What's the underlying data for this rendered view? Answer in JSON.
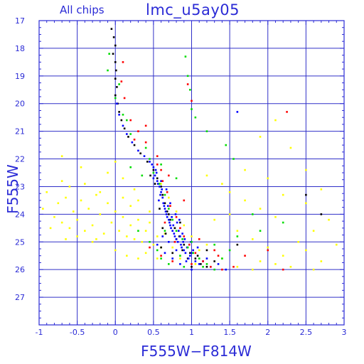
{
  "chart_data": {
    "type": "scatter",
    "title": "lmc_u5ay05",
    "subtitle": "All chips",
    "xlabel": "F555W−F814W",
    "ylabel": "F555W",
    "xlim": [
      -1,
      3
    ],
    "ylim": [
      28,
      17
    ],
    "y_inverted": true,
    "grid": true,
    "x_ticks": [
      -1,
      -0.5,
      0,
      0.5,
      1,
      1.5,
      2,
      2.5,
      3
    ],
    "y_ticks": [
      17,
      18,
      19,
      20,
      21,
      22,
      23,
      24,
      25,
      26,
      27
    ],
    "series": [
      {
        "color": "#ffff00",
        "points": [
          [
            -0.9,
            23.2
          ],
          [
            -0.8,
            24.1
          ],
          [
            -0.75,
            23.6
          ],
          [
            -0.7,
            24.3
          ],
          [
            -0.65,
            23.4
          ],
          [
            -0.6,
            24.5
          ],
          [
            -0.55,
            23.9
          ],
          [
            -0.5,
            24.2
          ],
          [
            -0.45,
            23.5
          ],
          [
            -0.4,
            24.6
          ],
          [
            -0.35,
            23.8
          ],
          [
            -0.3,
            24.4
          ],
          [
            -0.25,
            23.3
          ],
          [
            -0.2,
            24.0
          ],
          [
            -0.15,
            24.7
          ],
          [
            -0.1,
            23.6
          ],
          [
            -0.05,
            24.3
          ],
          [
            0.0,
            23.9
          ],
          [
            0.05,
            24.6
          ],
          [
            0.1,
            24.1
          ],
          [
            0.15,
            24.8
          ],
          [
            0.2,
            24.4
          ],
          [
            0.25,
            24.9
          ],
          [
            0.3,
            24.2
          ],
          [
            0.35,
            25.0
          ],
          [
            0.4,
            24.6
          ],
          [
            0.45,
            24.3
          ],
          [
            0.5,
            25.1
          ],
          [
            0.55,
            24.8
          ],
          [
            0.6,
            25.2
          ],
          [
            -0.7,
            22.8
          ],
          [
            -0.6,
            23.0
          ],
          [
            -0.4,
            22.9
          ],
          [
            -0.2,
            23.2
          ],
          [
            0.1,
            23.4
          ],
          [
            0.2,
            23.7
          ],
          [
            0.3,
            23.5
          ],
          [
            0.45,
            23.9
          ],
          [
            -0.85,
            24.5
          ],
          [
            -0.5,
            24.8
          ],
          [
            -0.3,
            25.0
          ],
          [
            0.0,
            25.3
          ],
          [
            0.15,
            25.5
          ],
          [
            0.3,
            25.6
          ],
          [
            -0.95,
            23.8
          ],
          [
            -0.65,
            24.9
          ],
          [
            0.4,
            25.4
          ],
          [
            0.55,
            25.6
          ],
          [
            -0.25,
            24.9
          ],
          [
            0.25,
            23.1
          ],
          [
            1.5,
            23.2
          ],
          [
            1.7,
            23.5
          ],
          [
            1.9,
            23.8
          ],
          [
            2.1,
            24.1
          ],
          [
            1.6,
            24.6
          ],
          [
            1.8,
            24.9
          ],
          [
            2.0,
            25.2
          ],
          [
            2.2,
            25.5
          ],
          [
            2.4,
            25.0
          ],
          [
            2.6,
            24.6
          ],
          [
            1.4,
            25.6
          ],
          [
            1.6,
            25.9
          ],
          [
            1.9,
            25.7
          ],
          [
            2.3,
            25.9
          ],
          [
            2.5,
            25.3
          ],
          [
            2.7,
            25.7
          ],
          [
            1.2,
            22.6
          ],
          [
            1.4,
            22.9
          ],
          [
            1.7,
            22.4
          ],
          [
            2.0,
            22.7
          ],
          [
            2.2,
            23.3
          ],
          [
            2.5,
            23.6
          ],
          [
            1.3,
            24.2
          ],
          [
            1.5,
            24.0
          ],
          [
            2.8,
            24.2
          ],
          [
            2.9,
            25.1
          ],
          [
            1.2,
            25.1
          ],
          [
            1.8,
            26.0
          ],
          [
            2.1,
            25.8
          ],
          [
            2.6,
            26.0
          ],
          [
            0.6,
            22.9
          ],
          [
            0.7,
            23.4
          ],
          [
            0.8,
            23.9
          ],
          [
            0.9,
            24.4
          ],
          [
            1.0,
            24.8
          ],
          [
            1.1,
            25.3
          ],
          [
            0.65,
            24.7
          ],
          [
            0.75,
            25.2
          ],
          [
            0.85,
            25.6
          ],
          [
            1.05,
            25.8
          ],
          [
            -0.45,
            22.3
          ],
          [
            -0.1,
            22.5
          ],
          [
            0.1,
            22.7
          ],
          [
            2.3,
            21.6
          ],
          [
            2.5,
            22.4
          ],
          [
            1.9,
            21.2
          ],
          [
            2.1,
            20.6
          ],
          [
            -0.7,
            21.9
          ],
          [
            0.0,
            22.1
          ],
          [
            2.7,
            23.1
          ]
        ]
      },
      {
        "color": "#000000",
        "points": [
          [
            -0.05,
            17.3
          ],
          [
            -0.02,
            17.6
          ],
          [
            0.0,
            17.9
          ],
          [
            -0.03,
            18.2
          ],
          [
            0.0,
            18.5
          ],
          [
            0.01,
            18.8
          ],
          [
            0.0,
            19.1
          ],
          [
            0.02,
            19.4
          ],
          [
            0.0,
            19.7
          ],
          [
            0.03,
            20.0
          ],
          [
            0.05,
            20.3
          ],
          [
            0.08,
            20.6
          ],
          [
            0.12,
            20.9
          ],
          [
            0.17,
            21.2
          ],
          [
            0.25,
            21.5
          ],
          [
            0.33,
            21.8
          ],
          [
            0.42,
            22.1
          ],
          [
            0.5,
            22.4
          ],
          [
            0.55,
            22.7
          ],
          [
            0.6,
            23.0
          ],
          [
            0.62,
            23.3
          ],
          [
            0.65,
            23.6
          ],
          [
            0.68,
            23.9
          ],
          [
            0.72,
            24.2
          ],
          [
            0.78,
            24.5
          ],
          [
            0.84,
            24.8
          ],
          [
            0.9,
            25.1
          ],
          [
            0.98,
            25.4
          ],
          [
            1.05,
            25.6
          ],
          [
            1.12,
            25.8
          ],
          [
            0.7,
            24.0
          ],
          [
            0.8,
            24.9
          ],
          [
            0.95,
            25.6
          ],
          [
            1.2,
            25.9
          ],
          [
            1.3,
            25.7
          ],
          [
            0.6,
            25.2
          ],
          [
            0.75,
            25.4
          ],
          [
            1.0,
            25.9
          ],
          [
            0.85,
            24.3
          ],
          [
            0.62,
            24.5
          ],
          [
            2.5,
            23.3
          ],
          [
            2.7,
            24.0
          ],
          [
            1.6,
            25.1
          ],
          [
            1.2,
            25.3
          ],
          [
            0.58,
            23.8
          ],
          [
            0.66,
            24.7
          ],
          [
            0.88,
            25.3
          ],
          [
            1.08,
            25.5
          ],
          [
            0.52,
            22.9
          ],
          [
            0.46,
            22.6
          ]
        ]
      },
      {
        "color": "#0000ff",
        "points": [
          [
            0.45,
            22.1
          ],
          [
            0.5,
            22.3
          ],
          [
            0.52,
            22.6
          ],
          [
            0.55,
            22.8
          ],
          [
            0.58,
            23.0
          ],
          [
            0.6,
            23.2
          ],
          [
            0.62,
            23.4
          ],
          [
            0.63,
            23.6
          ],
          [
            0.65,
            23.8
          ],
          [
            0.67,
            24.0
          ],
          [
            0.7,
            24.2
          ],
          [
            0.72,
            24.4
          ],
          [
            0.75,
            24.6
          ],
          [
            0.78,
            24.8
          ],
          [
            0.82,
            25.0
          ],
          [
            0.87,
            25.2
          ],
          [
            0.92,
            25.4
          ],
          [
            0.98,
            25.5
          ],
          [
            1.05,
            25.7
          ],
          [
            1.1,
            25.8
          ],
          [
            0.56,
            22.9
          ],
          [
            0.59,
            23.3
          ],
          [
            0.64,
            23.7
          ],
          [
            0.68,
            24.1
          ],
          [
            0.73,
            24.5
          ],
          [
            0.77,
            24.7
          ],
          [
            0.8,
            24.9
          ],
          [
            0.86,
            25.1
          ],
          [
            0.9,
            25.3
          ],
          [
            0.96,
            25.6
          ],
          [
            0.54,
            22.5
          ],
          [
            0.61,
            23.1
          ],
          [
            0.66,
            23.9
          ],
          [
            0.71,
            24.3
          ],
          [
            0.76,
            24.4
          ],
          [
            0.83,
            24.6
          ],
          [
            0.89,
            25.0
          ],
          [
            0.94,
            25.2
          ],
          [
            1.0,
            25.4
          ],
          [
            1.15,
            25.7
          ],
          [
            0.5,
            22.7
          ],
          [
            0.57,
            23.5
          ],
          [
            0.69,
            23.7
          ],
          [
            0.74,
            24.1
          ],
          [
            0.81,
            24.3
          ],
          [
            0.85,
            24.8
          ],
          [
            0.91,
            24.9
          ],
          [
            0.97,
            25.1
          ],
          [
            1.02,
            25.3
          ],
          [
            1.2,
            25.6
          ],
          [
            0.48,
            22.2
          ],
          [
            0.53,
            22.4
          ],
          [
            0.6,
            22.8
          ],
          [
            0.67,
            23.1
          ],
          [
            0.72,
            23.6
          ],
          [
            0.79,
            24.0
          ],
          [
            0.84,
            24.2
          ],
          [
            0.88,
            24.7
          ],
          [
            0.99,
            25.0
          ],
          [
            1.08,
            25.2
          ],
          [
            0.02,
            20.0
          ],
          [
            0.05,
            20.4
          ],
          [
            0.1,
            20.8
          ],
          [
            0.15,
            21.1
          ],
          [
            0.22,
            21.4
          ],
          [
            0.3,
            21.7
          ],
          [
            0.38,
            21.9
          ],
          [
            1.6,
            20.3
          ],
          [
            0.55,
            25.1
          ],
          [
            0.65,
            25.4
          ],
          [
            0.62,
            24.8
          ],
          [
            0.7,
            25.0
          ],
          [
            0.8,
            25.3
          ],
          [
            0.93,
            25.7
          ],
          [
            1.25,
            25.9
          ],
          [
            1.35,
            25.8
          ],
          [
            1.45,
            26.0
          ],
          [
            0.75,
            25.6
          ],
          [
            0.85,
            25.8
          ],
          [
            1.0,
            26.0
          ]
        ]
      },
      {
        "color": "#00dd00",
        "points": [
          [
            -0.08,
            18.2
          ],
          [
            -0.1,
            18.8
          ],
          [
            0.05,
            19.3
          ],
          [
            0.0,
            19.8
          ],
          [
            0.1,
            20.4
          ],
          [
            0.2,
            21.1
          ],
          [
            0.4,
            21.6
          ],
          [
            0.45,
            22.0
          ],
          [
            0.5,
            22.5
          ],
          [
            0.58,
            22.9
          ],
          [
            0.65,
            23.3
          ],
          [
            0.7,
            23.8
          ],
          [
            0.75,
            24.2
          ],
          [
            0.8,
            24.6
          ],
          [
            0.88,
            24.9
          ],
          [
            0.95,
            25.2
          ],
          [
            1.02,
            25.4
          ],
          [
            1.1,
            25.6
          ],
          [
            1.2,
            25.8
          ],
          [
            1.3,
            26.0
          ],
          [
            0.3,
            24.6
          ],
          [
            0.45,
            25.0
          ],
          [
            0.55,
            25.3
          ],
          [
            0.6,
            25.6
          ],
          [
            0.7,
            25.8
          ],
          [
            0.9,
            25.9
          ],
          [
            1.4,
            25.6
          ],
          [
            1.5,
            25.3
          ],
          [
            1.6,
            24.8
          ],
          [
            1.3,
            25.1
          ],
          [
            0.95,
            19.0
          ],
          [
            0.98,
            19.5
          ],
          [
            1.0,
            20.2
          ],
          [
            1.05,
            20.5
          ],
          [
            0.92,
            18.3
          ],
          [
            1.45,
            21.5
          ],
          [
            1.55,
            22.0
          ],
          [
            1.9,
            24.6
          ],
          [
            2.2,
            24.3
          ],
          [
            0.2,
            22.3
          ],
          [
            0.35,
            22.6
          ],
          [
            0.6,
            22.2
          ],
          [
            0.8,
            22.7
          ],
          [
            0.65,
            24.6
          ],
          [
            0.85,
            25.5
          ],
          [
            1.15,
            25.9
          ],
          [
            1.0,
            25.0
          ],
          [
            1.8,
            24.0
          ],
          [
            0.15,
            20.6
          ],
          [
            1.2,
            21.0
          ]
        ]
      },
      {
        "color": "#ff0000",
        "points": [
          [
            0.1,
            18.5
          ],
          [
            0.08,
            19.2
          ],
          [
            0.12,
            19.8
          ],
          [
            0.2,
            20.6
          ],
          [
            0.3,
            21.0
          ],
          [
            0.4,
            21.4
          ],
          [
            0.55,
            21.9
          ],
          [
            0.6,
            22.4
          ],
          [
            0.62,
            22.8
          ],
          [
            0.68,
            23.2
          ],
          [
            0.72,
            23.7
          ],
          [
            0.8,
            24.1
          ],
          [
            0.85,
            24.5
          ],
          [
            0.9,
            24.8
          ],
          [
            0.97,
            25.1
          ],
          [
            1.05,
            25.4
          ],
          [
            1.15,
            25.7
          ],
          [
            1.25,
            25.9
          ],
          [
            1.4,
            26.0
          ],
          [
            1.55,
            25.9
          ],
          [
            0.45,
            25.2
          ],
          [
            0.6,
            25.5
          ],
          [
            0.75,
            25.7
          ],
          [
            1.0,
            25.8
          ],
          [
            1.35,
            25.5
          ],
          [
            1.7,
            25.5
          ],
          [
            2.0,
            25.3
          ],
          [
            2.2,
            26.0
          ],
          [
            2.25,
            20.3
          ],
          [
            0.95,
            19.3
          ],
          [
            1.0,
            19.9
          ],
          [
            0.4,
            20.8
          ],
          [
            0.25,
            21.3
          ],
          [
            0.55,
            22.2
          ],
          [
            0.7,
            22.6
          ],
          [
            0.9,
            23.5
          ],
          [
            1.1,
            24.9
          ],
          [
            1.3,
            25.3
          ],
          [
            0.65,
            24.3
          ],
          [
            0.78,
            25.0
          ]
        ]
      }
    ]
  }
}
